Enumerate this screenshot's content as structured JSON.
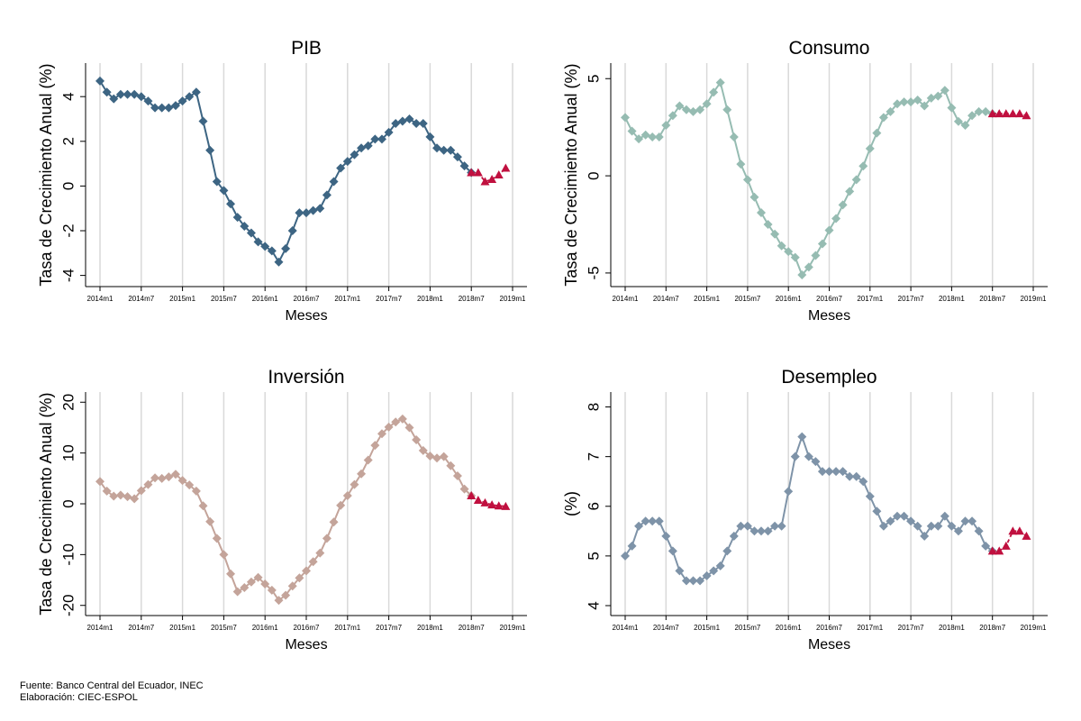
{
  "source_line": "Fuente: Banco Central del Ecuador, INEC",
  "credit_line": "Elaboración: CIEC-ESPOL",
  "x_tick_labels": [
    "2014m1",
    "2014m7",
    "2015m1",
    "2015m7",
    "2016m1",
    "2016m7",
    "2017m1",
    "2017m7",
    "2018m1",
    "2018m7",
    "2019m1"
  ],
  "chart_data": [
    {
      "type": "line",
      "title": "PIB",
      "xlabel": "Meses",
      "ylabel": "Tasa de Crecimiento Anual (%)",
      "ylim": [
        -4.5,
        5.5
      ],
      "yticks": [
        -4,
        -2,
        0,
        2,
        4
      ],
      "color_actual": "#3d6583",
      "color_forecast": "#c0103f",
      "actual": {
        "start": "2014m1",
        "values": [
          4.7,
          4.2,
          3.9,
          4.1,
          4.1,
          4.1,
          4.0,
          3.8,
          3.5,
          3.5,
          3.5,
          3.6,
          3.8,
          4.0,
          4.2,
          2.9,
          1.6,
          0.2,
          -0.2,
          -0.8,
          -1.4,
          -1.8,
          -2.1,
          -2.5,
          -2.7,
          -2.9,
          -3.4,
          -2.8,
          -2.0,
          -1.2,
          -1.2,
          -1.1,
          -1.0,
          -0.4,
          0.2,
          0.8,
          1.1,
          1.4,
          1.7,
          1.8,
          2.1,
          2.1,
          2.4,
          2.8,
          2.9,
          3.0,
          2.8,
          2.8,
          2.2,
          1.7,
          1.6,
          1.6,
          1.3,
          0.9,
          0.6
        ]
      },
      "forecast": {
        "start": "2018m7",
        "values": [
          0.6,
          0.6,
          0.2,
          0.3,
          0.5,
          0.8
        ]
      }
    },
    {
      "type": "line",
      "title": "Consumo",
      "xlabel": "Meses",
      "ylabel": "Tasa de Crecimiento Anual (%)",
      "ylim": [
        -5.7,
        5.8
      ],
      "yticks": [
        -5,
        0,
        5
      ],
      "color_actual": "#96bcb2",
      "color_forecast": "#c0103f",
      "actual": {
        "start": "2014m1",
        "values": [
          3.0,
          2.3,
          1.9,
          2.1,
          2.0,
          2.0,
          2.6,
          3.1,
          3.6,
          3.4,
          3.3,
          3.4,
          3.7,
          4.3,
          4.8,
          3.4,
          2.0,
          0.6,
          -0.2,
          -1.1,
          -1.9,
          -2.5,
          -3.0,
          -3.6,
          -3.9,
          -4.2,
          -5.1,
          -4.7,
          -4.1,
          -3.5,
          -2.8,
          -2.2,
          -1.5,
          -0.8,
          -0.2,
          0.5,
          1.4,
          2.2,
          3.0,
          3.3,
          3.7,
          3.8,
          3.8,
          3.9,
          3.6,
          4.0,
          4.1,
          4.4,
          3.5,
          2.8,
          2.6,
          3.1,
          3.3,
          3.3,
          3.2
        ]
      },
      "forecast": {
        "start": "2018m7",
        "values": [
          3.2,
          3.2,
          3.2,
          3.2,
          3.2,
          3.1
        ]
      }
    },
    {
      "type": "line",
      "title": "Inversión",
      "xlabel": "Meses",
      "ylabel": "Tasa de Crecimiento Anual (%)",
      "ylim": [
        -22,
        22
      ],
      "yticks": [
        -20,
        -10,
        0,
        10,
        20
      ],
      "color_actual": "#c4a49a",
      "color_forecast": "#c0103f",
      "actual": {
        "start": "2014m1",
        "values": [
          4.4,
          2.5,
          1.5,
          1.7,
          1.4,
          1.0,
          2.6,
          3.8,
          5.1,
          5.0,
          5.3,
          5.8,
          4.6,
          3.7,
          2.5,
          -0.4,
          -3.5,
          -6.8,
          -10.0,
          -13.8,
          -17.3,
          -16.5,
          -15.4,
          -14.5,
          -15.8,
          -17.0,
          -19.0,
          -18.0,
          -16.2,
          -14.6,
          -13.2,
          -11.4,
          -9.7,
          -6.8,
          -3.6,
          -0.3,
          1.6,
          3.8,
          5.9,
          8.6,
          11.5,
          13.8,
          15.1,
          16.1,
          16.7,
          15.0,
          12.6,
          10.5,
          9.4,
          9.0,
          9.3,
          7.5,
          5.5,
          2.9,
          1.6
        ]
      },
      "forecast": {
        "start": "2018m7",
        "values": [
          1.6,
          0.7,
          0.2,
          -0.2,
          -0.4,
          -0.5
        ]
      }
    },
    {
      "type": "line",
      "title": "Desempleo",
      "xlabel": "Meses",
      "ylabel": "(%)",
      "ylim": [
        3.8,
        8.3
      ],
      "yticks": [
        4,
        5,
        6,
        7,
        8
      ],
      "color_actual": "#7e93a8",
      "color_forecast": "#c0103f",
      "actual": {
        "start": "2014m1",
        "values": [
          5.0,
          5.2,
          5.6,
          5.7,
          5.7,
          5.7,
          5.4,
          5.1,
          4.7,
          4.5,
          4.5,
          4.5,
          4.6,
          4.7,
          4.8,
          5.1,
          5.4,
          5.6,
          5.6,
          5.5,
          5.5,
          5.5,
          5.6,
          5.6,
          6.3,
          7.0,
          7.4,
          7.0,
          6.9,
          6.7,
          6.7,
          6.7,
          6.7,
          6.6,
          6.6,
          6.5,
          6.2,
          5.9,
          5.6,
          5.7,
          5.8,
          5.8,
          5.7,
          5.6,
          5.4,
          5.6,
          5.6,
          5.8,
          5.6,
          5.5,
          5.7,
          5.7,
          5.5,
          5.2,
          5.1
        ]
      },
      "forecast": {
        "start": "2018m7",
        "values": [
          5.1,
          5.1,
          5.2,
          5.5,
          5.5,
          5.4
        ]
      }
    }
  ]
}
